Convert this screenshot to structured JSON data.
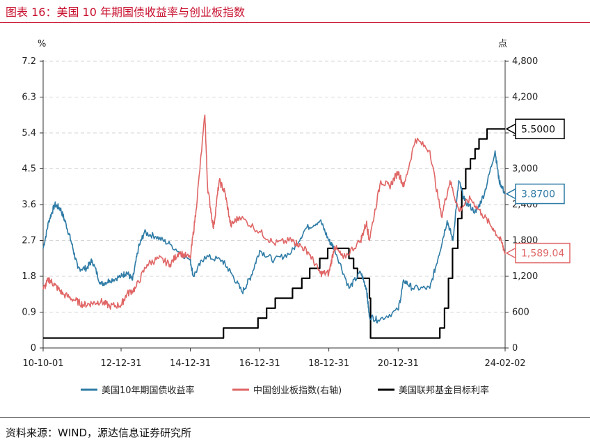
{
  "header": {
    "title": "图表 16：美国 10 年期国债收益率与创业板指数"
  },
  "footer": {
    "source": "资料来源：WIND，源达信息证券研究所"
  },
  "chart_data": {
    "type": "line",
    "left_unit": "%",
    "right_unit": "点",
    "left_ticks": [
      "7.2",
      "6.3",
      "5.4",
      "4.5",
      "3.6",
      "2.7",
      "1.8",
      "0.9",
      "0"
    ],
    "right_ticks": [
      "4,800",
      "4,200",
      "3,600",
      "3,000",
      "2,400",
      "1,800",
      "1,200",
      "600",
      "0"
    ],
    "x_ticks": [
      "10-10-01",
      "12-12-31",
      "14-12-31",
      "16-12-31",
      "18-12-31",
      "20-12-31",
      "24-02-02"
    ],
    "ylim_left": [
      0,
      7.2
    ],
    "ylim_right": [
      0,
      4800
    ],
    "grid": "horizontal dashed",
    "legend_position": "bottom",
    "series": [
      {
        "name": "美国10年期国债收益率",
        "axis": "left",
        "color": "#2E7BA6",
        "points": [
          [
            "2010-10-01",
            2.5
          ],
          [
            "2010-12-01",
            3.2
          ],
          [
            "2011-02-01",
            3.6
          ],
          [
            "2011-04-01",
            3.5
          ],
          [
            "2011-06-01",
            3.1
          ],
          [
            "2011-08-01",
            2.6
          ],
          [
            "2011-10-01",
            2.0
          ],
          [
            "2012-01-01",
            2.0
          ],
          [
            "2012-03-01",
            2.2
          ],
          [
            "2012-06-01",
            1.6
          ],
          [
            "2012-09-01",
            1.7
          ],
          [
            "2012-12-31",
            1.8
          ],
          [
            "2013-03-01",
            1.9
          ],
          [
            "2013-05-01",
            1.7
          ],
          [
            "2013-07-01",
            2.5
          ],
          [
            "2013-09-01",
            2.9
          ],
          [
            "2014-01-01",
            2.8
          ],
          [
            "2014-06-01",
            2.6
          ],
          [
            "2014-12-31",
            2.2
          ],
          [
            "2015-02-01",
            1.8
          ],
          [
            "2015-06-01",
            2.3
          ],
          [
            "2015-12-01",
            2.2
          ],
          [
            "2016-03-01",
            1.9
          ],
          [
            "2016-07-01",
            1.4
          ],
          [
            "2016-10-01",
            1.8
          ],
          [
            "2016-12-31",
            2.45
          ],
          [
            "2017-06-01",
            2.2
          ],
          [
            "2017-12-01",
            2.4
          ],
          [
            "2018-05-01",
            3.0
          ],
          [
            "2018-10-01",
            3.2
          ],
          [
            "2018-12-31",
            2.7
          ],
          [
            "2019-03-01",
            2.5
          ],
          [
            "2019-08-01",
            1.5
          ],
          [
            "2019-12-01",
            1.9
          ],
          [
            "2020-02-01",
            1.5
          ],
          [
            "2020-03-01",
            0.8
          ],
          [
            "2020-06-01",
            0.7
          ],
          [
            "2020-12-31",
            0.95
          ],
          [
            "2021-03-01",
            1.7
          ],
          [
            "2021-06-01",
            1.5
          ],
          [
            "2021-12-01",
            1.5
          ],
          [
            "2022-03-01",
            2.3
          ],
          [
            "2022-06-01",
            3.2
          ],
          [
            "2022-08-01",
            2.7
          ],
          [
            "2022-10-01",
            4.2
          ],
          [
            "2022-12-01",
            3.7
          ],
          [
            "2023-04-01",
            3.4
          ],
          [
            "2023-07-01",
            3.9
          ],
          [
            "2023-10-19",
            4.95
          ],
          [
            "2023-12-01",
            4.2
          ],
          [
            "2024-02-02",
            3.87
          ]
        ]
      },
      {
        "name": "中国创业板指数(右轴)",
        "axis": "right",
        "color": "#E06666",
        "points": [
          [
            "2010-10-01",
            980
          ],
          [
            "2010-12-01",
            1150
          ],
          [
            "2011-02-01",
            1050
          ],
          [
            "2011-05-01",
            900
          ],
          [
            "2011-09-01",
            800
          ],
          [
            "2011-12-01",
            720
          ],
          [
            "2012-03-01",
            750
          ],
          [
            "2012-06-01",
            780
          ],
          [
            "2012-09-01",
            700
          ],
          [
            "2012-12-31",
            720
          ],
          [
            "2013-03-01",
            900
          ],
          [
            "2013-06-01",
            1000
          ],
          [
            "2013-10-01",
            1400
          ],
          [
            "2014-02-01",
            1500
          ],
          [
            "2014-06-01",
            1400
          ],
          [
            "2014-09-01",
            1600
          ],
          [
            "2014-12-31",
            1500
          ],
          [
            "2015-03-01",
            2300
          ],
          [
            "2015-06-03",
            3900
          ],
          [
            "2015-07-01",
            2700
          ],
          [
            "2015-09-01",
            2000
          ],
          [
            "2015-11-01",
            2800
          ],
          [
            "2016-01-01",
            2600
          ],
          [
            "2016-03-01",
            2050
          ],
          [
            "2016-06-01",
            2200
          ],
          [
            "2016-12-31",
            1950
          ],
          [
            "2017-06-01",
            1750
          ],
          [
            "2017-12-01",
            1800
          ],
          [
            "2018-02-01",
            1750
          ],
          [
            "2018-06-01",
            1600
          ],
          [
            "2018-10-01",
            1250
          ],
          [
            "2018-12-31",
            1250
          ],
          [
            "2019-03-01",
            1700
          ],
          [
            "2019-06-01",
            1500
          ],
          [
            "2019-12-01",
            1800
          ],
          [
            "2020-02-01",
            2100
          ],
          [
            "2020-03-01",
            1800
          ],
          [
            "2020-07-01",
            2800
          ],
          [
            "2020-10-01",
            2700
          ],
          [
            "2020-12-31",
            2950
          ],
          [
            "2021-03-01",
            2700
          ],
          [
            "2021-07-01",
            3500
          ],
          [
            "2021-12-01",
            3300
          ],
          [
            "2022-04-01",
            2200
          ],
          [
            "2022-07-01",
            2800
          ],
          [
            "2022-10-01",
            2300
          ],
          [
            "2023-02-01",
            2500
          ],
          [
            "2023-06-01",
            2250
          ],
          [
            "2023-10-01",
            2000
          ],
          [
            "2024-01-01",
            1750
          ],
          [
            "2024-02-02",
            1589.04
          ]
        ]
      },
      {
        "name": "美国联邦基金目标利率",
        "axis": "left",
        "color": "#000000",
        "step": true,
        "points": [
          [
            "2010-10-01",
            0.25
          ],
          [
            "2015-12-16",
            0.5
          ],
          [
            "2016-12-14",
            0.75
          ],
          [
            "2017-03-15",
            1.0
          ],
          [
            "2017-06-14",
            1.25
          ],
          [
            "2017-12-13",
            1.5
          ],
          [
            "2018-03-21",
            1.75
          ],
          [
            "2018-06-13",
            2.0
          ],
          [
            "2018-09-26",
            2.25
          ],
          [
            "2018-12-19",
            2.5
          ],
          [
            "2019-07-31",
            2.25
          ],
          [
            "2019-09-18",
            2.0
          ],
          [
            "2019-10-30",
            1.75
          ],
          [
            "2020-03-03",
            1.25
          ],
          [
            "2020-03-15",
            0.25
          ],
          [
            "2022-03-16",
            0.5
          ],
          [
            "2022-05-04",
            1.0
          ],
          [
            "2022-06-15",
            1.75
          ],
          [
            "2022-07-27",
            2.5
          ],
          [
            "2022-09-21",
            3.25
          ],
          [
            "2022-11-02",
            4.0
          ],
          [
            "2022-12-14",
            4.5
          ],
          [
            "2023-02-01",
            4.75
          ],
          [
            "2023-03-22",
            5.0
          ],
          [
            "2023-05-03",
            5.25
          ],
          [
            "2023-07-26",
            5.5
          ],
          [
            "2024-02-02",
            5.5
          ]
        ]
      }
    ],
    "callouts": [
      {
        "text": "5.5000",
        "series": 2
      },
      {
        "text": "3.8700",
        "series": 0
      },
      {
        "text": "1,589.04",
        "series": 1
      }
    ]
  }
}
